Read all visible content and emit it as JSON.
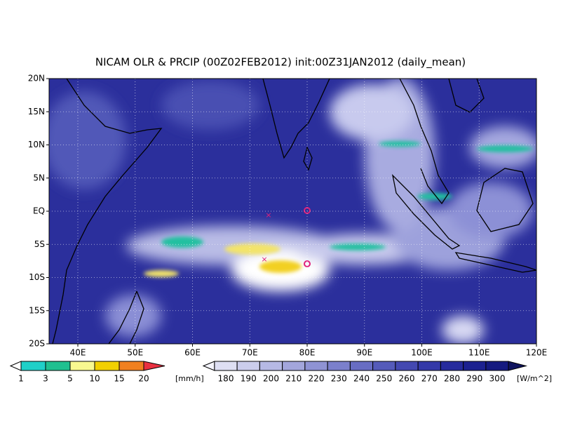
{
  "header": {
    "title": "NICAM OLR & PRCIP (00Z02FEB2012) init:00Z31JAN2012 (daily_mean)"
  },
  "map": {
    "lat_labels": [
      "20N",
      "15N",
      "10N",
      "5N",
      "EQ",
      "5S",
      "10S",
      "15S",
      "20S"
    ],
    "lon_labels": [
      "40E",
      "50E",
      "60E",
      "70E",
      "80E",
      "90E",
      "100E",
      "110E",
      "120E"
    ]
  },
  "precip_colorbar": {
    "labels": [
      1,
      3,
      5,
      10,
      15,
      20
    ],
    "unit": "[mm/h]"
  },
  "olr_colorbar": {
    "labels": [
      180,
      190,
      200,
      210,
      220,
      230,
      240,
      250,
      260,
      270,
      280,
      290,
      300
    ],
    "unit": "[W/m^2]"
  }
}
